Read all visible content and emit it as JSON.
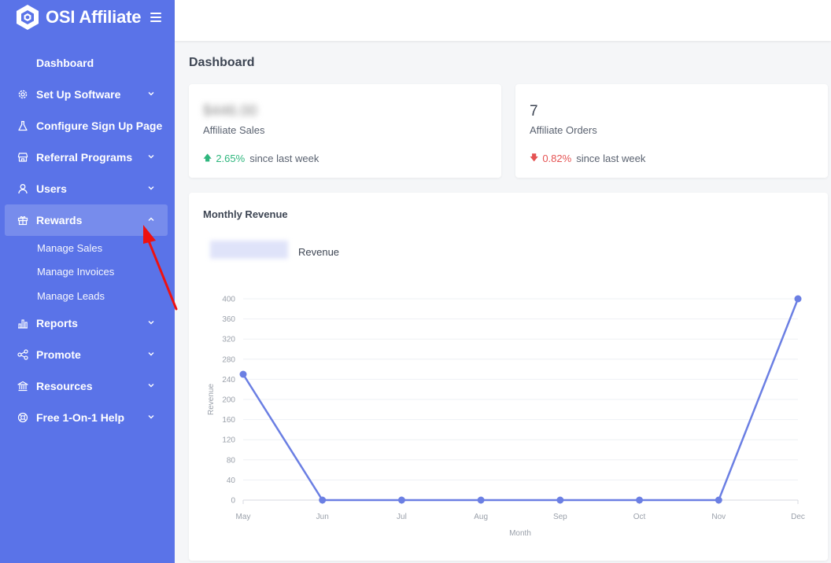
{
  "brand": {
    "name": "OSI Affiliate"
  },
  "sidebar": {
    "items": [
      {
        "label": "Dashboard",
        "icon": "none"
      },
      {
        "label": "Set Up Software",
        "icon": "gear-icon",
        "chevron": "down"
      },
      {
        "label": "Configure Sign Up Page",
        "icon": "flask-icon"
      },
      {
        "label": "Referral Programs",
        "icon": "store-icon",
        "chevron": "down"
      },
      {
        "label": "Users",
        "icon": "user-icon",
        "chevron": "down"
      },
      {
        "label": "Rewards",
        "icon": "gift-icon",
        "chevron": "up",
        "active": true
      },
      {
        "label": "Reports",
        "icon": "bar-chart-icon",
        "chevron": "down"
      },
      {
        "label": "Promote",
        "icon": "share-icon",
        "chevron": "down"
      },
      {
        "label": "Resources",
        "icon": "bank-icon",
        "chevron": "down"
      },
      {
        "label": "Free 1-On-1 Help",
        "icon": "lifebuoy-icon",
        "chevron": "down"
      }
    ],
    "rewards_sub": [
      {
        "label": "Manage Sales"
      },
      {
        "label": "Manage Invoices"
      },
      {
        "label": "Manage Leads"
      }
    ]
  },
  "main": {
    "title": "Dashboard",
    "cards": [
      {
        "value": "$446.00",
        "value_obscured": true,
        "label": "Affiliate Sales",
        "trend": "up",
        "change": "2.65%",
        "since": "since last week"
      },
      {
        "value": "7",
        "label": "Affiliate Orders",
        "trend": "down",
        "change": "0.82%",
        "since": "since last week"
      }
    ],
    "chart_title": "Monthly Revenue",
    "legend_label": "Revenue"
  },
  "colors": {
    "sidebar": "#5a73e8",
    "line": "#6b7fe3",
    "up": "#2eb67d",
    "down": "#e55353"
  },
  "chart_data": {
    "type": "line",
    "categories": [
      "May",
      "Jun",
      "Jul",
      "Aug",
      "Sep",
      "Oct",
      "Nov",
      "Dec"
    ],
    "series": [
      {
        "name": "Revenue",
        "values": [
          250,
          0,
          0,
          0,
          0,
          0,
          0,
          400
        ]
      }
    ],
    "xlabel": "Month",
    "ylabel": "Revenue",
    "ylim": [
      0,
      400
    ],
    "yticks": [
      0,
      40,
      80,
      120,
      160,
      200,
      240,
      280,
      320,
      360,
      400
    ],
    "grid": true,
    "legend": "top-left"
  }
}
